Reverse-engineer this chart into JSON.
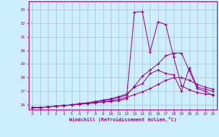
{
  "xlabel": "Windchill (Refroidissement éolien,°C)",
  "bg_color": "#cceeff",
  "grid_color": "#aabbcc",
  "line_color": "#990099",
  "xlim": [
    -0.5,
    23.5
  ],
  "ylim": [
    25.65,
    33.6
  ],
  "yticks": [
    26,
    27,
    28,
    29,
    30,
    31,
    32,
    33
  ],
  "xticks": [
    0,
    1,
    2,
    3,
    4,
    5,
    6,
    7,
    8,
    9,
    10,
    11,
    12,
    13,
    14,
    15,
    16,
    17,
    18,
    19,
    20,
    21,
    22,
    23
  ],
  "series": [
    [
      25.8,
      25.8,
      25.85,
      25.9,
      25.95,
      26.0,
      26.05,
      26.1,
      26.15,
      26.2,
      26.25,
      26.3,
      26.45,
      32.8,
      32.85,
      29.9,
      32.1,
      31.9,
      29.5,
      27.4,
      27.1,
      26.9,
      26.8,
      26.75
    ],
    [
      25.8,
      25.8,
      25.85,
      25.9,
      25.95,
      26.0,
      26.05,
      26.1,
      26.2,
      26.3,
      26.4,
      26.55,
      26.7,
      27.35,
      28.1,
      28.55,
      29.0,
      29.6,
      29.8,
      29.8,
      28.5,
      27.2,
      27.0,
      26.7
    ],
    [
      25.8,
      25.8,
      25.85,
      25.9,
      25.95,
      26.0,
      26.1,
      26.15,
      26.25,
      26.35,
      26.45,
      26.6,
      26.8,
      27.3,
      27.55,
      28.3,
      28.55,
      28.3,
      28.2,
      27.0,
      28.7,
      27.3,
      27.15,
      27.0
    ],
    [
      25.8,
      25.8,
      25.85,
      25.9,
      25.95,
      26.0,
      26.05,
      26.1,
      26.15,
      26.2,
      26.3,
      26.4,
      26.55,
      26.75,
      26.95,
      27.2,
      27.5,
      27.8,
      28.0,
      28.0,
      27.8,
      27.5,
      27.3,
      27.15
    ]
  ]
}
